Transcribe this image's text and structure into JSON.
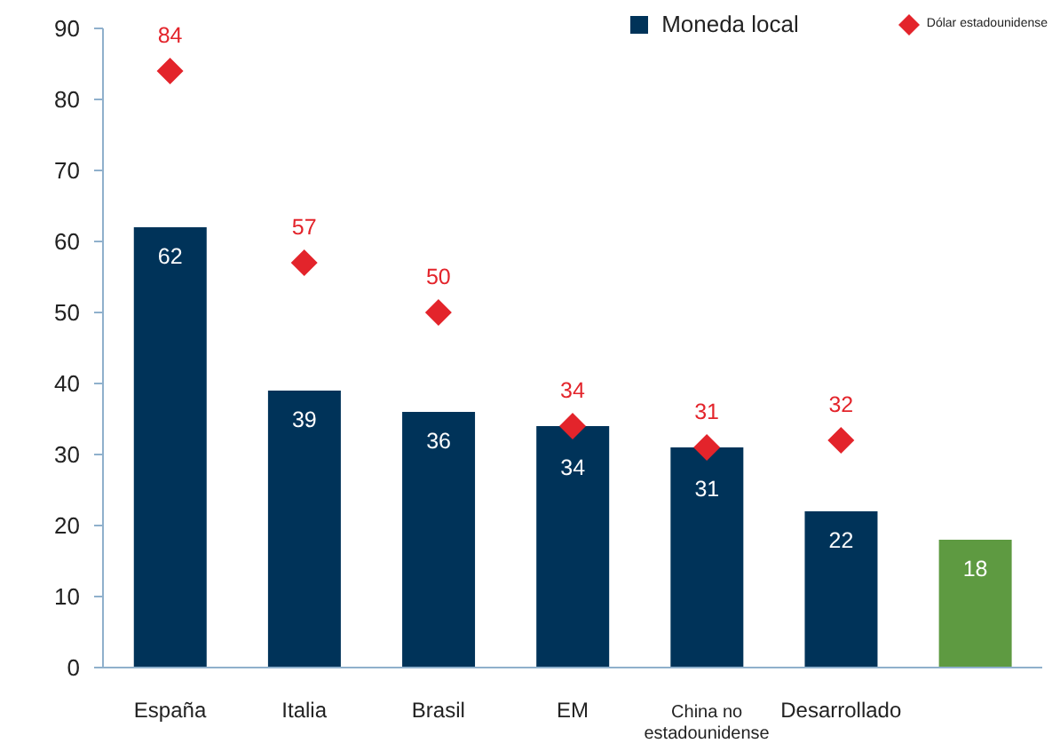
{
  "chart_data": {
    "type": "bar",
    "categories": [
      "España",
      "Italia",
      "Brasil",
      "EM",
      "China no estadounidense",
      "Desarrollado",
      null
    ],
    "series": [
      {
        "name": "Moneda local",
        "color": "#003359",
        "colors": [
          "#003359",
          "#003359",
          "#003359",
          "#003359",
          "#003359",
          "#003359",
          "#5e9a41"
        ],
        "values": [
          62,
          39,
          36,
          34,
          31,
          22,
          18
        ]
      },
      {
        "name": "Dólar estadounidense",
        "type": "scatter",
        "color": "#e3242b",
        "marker": "diamond",
        "values": [
          84,
          57,
          50,
          34,
          31,
          32,
          null
        ]
      }
    ],
    "ylim": [
      0,
      90
    ],
    "yticks": [
      0,
      10,
      20,
      30,
      40,
      50,
      60,
      70,
      80,
      90
    ],
    "grid": false,
    "legend": "top right",
    "data_labels": true
  }
}
